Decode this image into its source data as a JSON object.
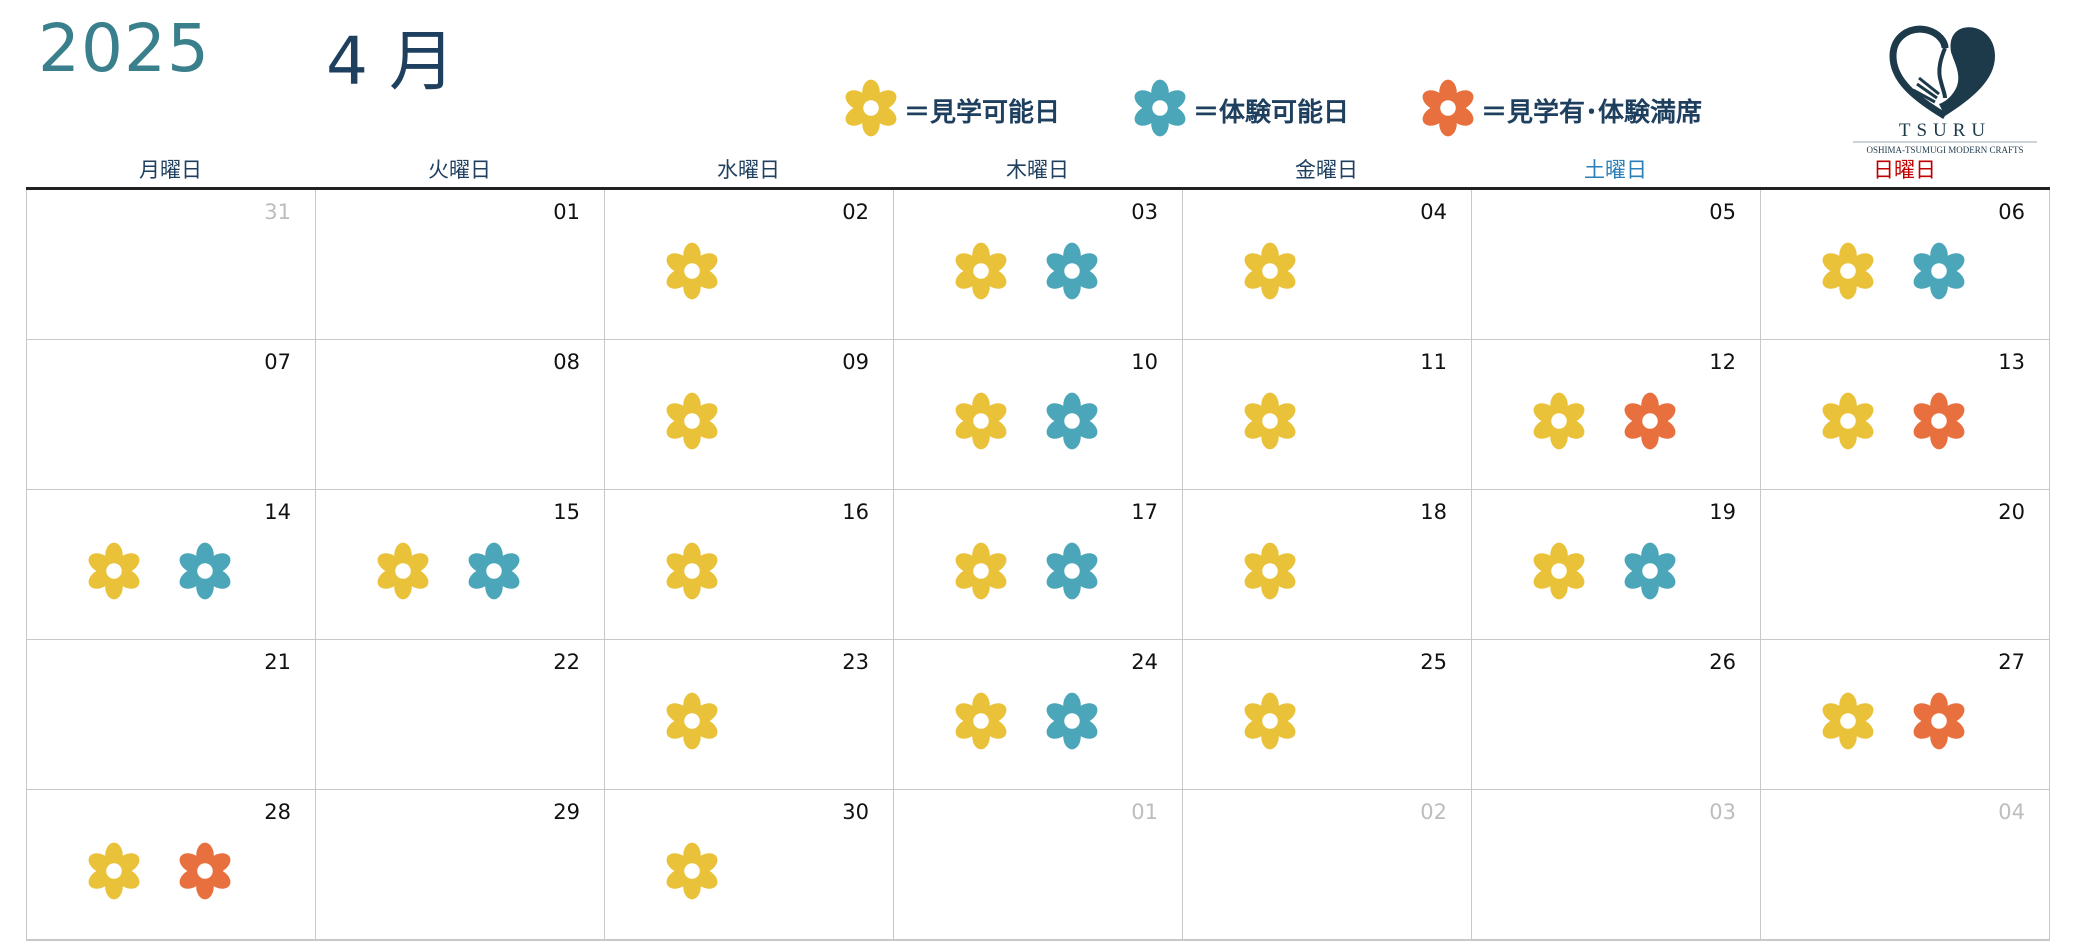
{
  "header": {
    "year": "2025",
    "month": "4 月"
  },
  "legend": [
    {
      "key": "visit",
      "label": "＝見学可能日",
      "color": "#e9c23a",
      "icon": "flower-icon"
    },
    {
      "key": "exp",
      "label": "＝体験可能日",
      "color": "#4aa6b8",
      "icon": "flower-icon"
    },
    {
      "key": "full",
      "label": "＝見学有･体験満席",
      "color": "#e8703e",
      "icon": "flower-icon"
    }
  ],
  "logo": {
    "name": "TSURU",
    "tagline": "OSHIMA-TSUMUGI MODERN CRAFTS",
    "color": "#1c3a4a"
  },
  "weekdays": [
    {
      "label": "月曜日",
      "color": "#1f3f5f"
    },
    {
      "label": "火曜日",
      "color": "#1f3f5f"
    },
    {
      "label": "水曜日",
      "color": "#1f3f5f"
    },
    {
      "label": "木曜日",
      "color": "#1f3f5f"
    },
    {
      "label": "金曜日",
      "color": "#1f3f5f"
    },
    {
      "label": "土曜日",
      "color": "#2a7fb8"
    },
    {
      "label": "日曜日",
      "color": "#c00000"
    }
  ],
  "days": [
    {
      "day": "31",
      "muted": true,
      "marks": []
    },
    {
      "day": "01",
      "marks": []
    },
    {
      "day": "02",
      "marks": [
        "visit"
      ]
    },
    {
      "day": "03",
      "marks": [
        "visit",
        "exp"
      ]
    },
    {
      "day": "04",
      "marks": [
        "visit"
      ]
    },
    {
      "day": "05",
      "marks": []
    },
    {
      "day": "06",
      "marks": [
        "visit",
        "exp"
      ]
    },
    {
      "day": "07",
      "marks": []
    },
    {
      "day": "08",
      "marks": []
    },
    {
      "day": "09",
      "marks": [
        "visit"
      ]
    },
    {
      "day": "10",
      "marks": [
        "visit",
        "exp"
      ]
    },
    {
      "day": "11",
      "marks": [
        "visit"
      ]
    },
    {
      "day": "12",
      "marks": [
        "visit",
        "full"
      ]
    },
    {
      "day": "13",
      "marks": [
        "visit",
        "full"
      ]
    },
    {
      "day": "14",
      "marks": [
        "visit",
        "exp"
      ]
    },
    {
      "day": "15",
      "marks": [
        "visit",
        "exp"
      ]
    },
    {
      "day": "16",
      "marks": [
        "visit"
      ]
    },
    {
      "day": "17",
      "marks": [
        "visit",
        "exp"
      ]
    },
    {
      "day": "18",
      "marks": [
        "visit"
      ]
    },
    {
      "day": "19",
      "marks": [
        "visit",
        "exp"
      ]
    },
    {
      "day": "20",
      "marks": []
    },
    {
      "day": "21",
      "marks": []
    },
    {
      "day": "22",
      "marks": []
    },
    {
      "day": "23",
      "marks": [
        "visit"
      ]
    },
    {
      "day": "24",
      "marks": [
        "visit",
        "exp"
      ]
    },
    {
      "day": "25",
      "marks": [
        "visit"
      ]
    },
    {
      "day": "26",
      "marks": []
    },
    {
      "day": "27",
      "marks": [
        "visit",
        "full"
      ]
    },
    {
      "day": "28",
      "marks": [
        "visit",
        "full"
      ]
    },
    {
      "day": "29",
      "marks": []
    },
    {
      "day": "30",
      "marks": [
        "visit"
      ]
    },
    {
      "day": "01",
      "muted": true,
      "marks": []
    },
    {
      "day": "02",
      "muted": true,
      "marks": []
    },
    {
      "day": "03",
      "muted": true,
      "marks": []
    },
    {
      "day": "04",
      "muted": true,
      "marks": []
    }
  ]
}
